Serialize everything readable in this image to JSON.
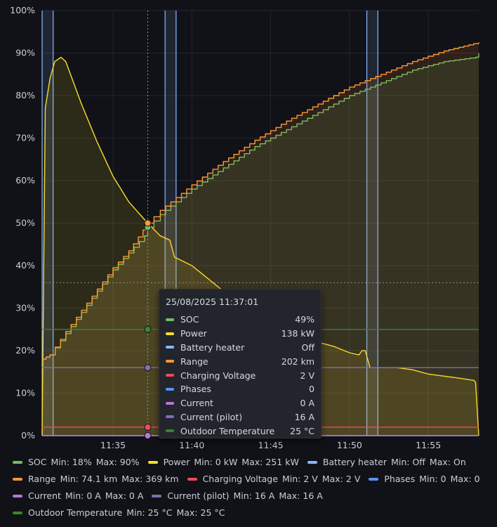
{
  "chart_data": {
    "type": "line",
    "y_ticks": [
      "0%",
      "10%",
      "20%",
      "30%",
      "40%",
      "50%",
      "60%",
      "70%",
      "80%",
      "90%",
      "100%"
    ],
    "x_ticks": [
      "11:35",
      "11:40",
      "11:45",
      "11:50",
      "11:55"
    ],
    "x_ticks_minutes": [
      35,
      40,
      45,
      50,
      55
    ],
    "x_range_minutes": [
      30.5,
      58.2
    ],
    "ylim": [
      0,
      100
    ],
    "grid": true,
    "legend_position": "bottom",
    "series": [
      {
        "name": "SOC",
        "color": "#73bf69",
        "points": [
          [
            30.5,
            18
          ],
          [
            31.0,
            19
          ],
          [
            32.0,
            24
          ],
          [
            33.0,
            29
          ],
          [
            34.0,
            34
          ],
          [
            35.0,
            39
          ],
          [
            36.0,
            43
          ],
          [
            37.0,
            47
          ],
          [
            37.2,
            49
          ],
          [
            38.0,
            52
          ],
          [
            40.0,
            58
          ],
          [
            42.0,
            63
          ],
          [
            44.0,
            68
          ],
          [
            46.0,
            72
          ],
          [
            48.0,
            76
          ],
          [
            50.0,
            80
          ],
          [
            52.0,
            83
          ],
          [
            54.0,
            86
          ],
          [
            56.0,
            88
          ],
          [
            58.0,
            89
          ],
          [
            58.2,
            90
          ]
        ]
      },
      {
        "name": "Power",
        "color": "#fade2a",
        "points": [
          [
            30.5,
            0
          ],
          [
            30.7,
            77
          ],
          [
            31.0,
            84
          ],
          [
            31.3,
            88
          ],
          [
            31.7,
            89
          ],
          [
            32.0,
            88
          ],
          [
            33.0,
            78
          ],
          [
            34.0,
            69
          ],
          [
            35.0,
            61
          ],
          [
            36.0,
            55
          ],
          [
            37.2,
            50
          ],
          [
            38.0,
            47
          ],
          [
            38.6,
            46
          ],
          [
            38.9,
            42
          ],
          [
            40.0,
            40
          ],
          [
            41.0,
            37
          ],
          [
            42.0,
            34
          ],
          [
            43.0,
            32
          ],
          [
            44.0,
            29
          ],
          [
            45.0,
            27
          ],
          [
            46.0,
            25
          ],
          [
            47.0,
            23
          ],
          [
            48.0,
            22
          ],
          [
            49.0,
            21
          ],
          [
            50.0,
            19.5
          ],
          [
            50.6,
            19
          ],
          [
            50.8,
            20
          ],
          [
            51.0,
            20
          ],
          [
            51.3,
            16
          ],
          [
            53.0,
            16
          ],
          [
            54.0,
            15.5
          ],
          [
            55.0,
            14.5
          ],
          [
            56.0,
            14
          ],
          [
            57.0,
            13.5
          ],
          [
            57.9,
            13
          ],
          [
            58.0,
            12.5
          ],
          [
            58.2,
            0
          ]
        ]
      },
      {
        "name": "Battery heater",
        "color": "#8ab8ff",
        "points": []
      },
      {
        "name": "Range",
        "color": "#ff9830",
        "points": [
          [
            30.5,
            18
          ],
          [
            31.0,
            19
          ],
          [
            32.0,
            24.5
          ],
          [
            33.0,
            29.5
          ],
          [
            34.0,
            34.5
          ],
          [
            35.0,
            39.5
          ],
          [
            36.0,
            43.5
          ],
          [
            37.2,
            50
          ],
          [
            38.0,
            53
          ],
          [
            40.0,
            59
          ],
          [
            42.0,
            64.5
          ],
          [
            44.0,
            69.5
          ],
          [
            46.0,
            74
          ],
          [
            48.0,
            78
          ],
          [
            50.0,
            82
          ],
          [
            52.0,
            85
          ],
          [
            54.0,
            88
          ],
          [
            56.0,
            90.5
          ],
          [
            58.2,
            92.5
          ]
        ]
      },
      {
        "name": "Charging Voltage",
        "color": "#f2495c",
        "points": [
          [
            30.5,
            2
          ],
          [
            58.2,
            2
          ]
        ]
      },
      {
        "name": "Phases",
        "color": "#5794f2",
        "points": [
          [
            30.5,
            0
          ],
          [
            58.2,
            0
          ]
        ]
      },
      {
        "name": "Current",
        "color": "#b877d9",
        "points": [
          [
            30.5,
            0
          ],
          [
            58.2,
            0
          ]
        ]
      },
      {
        "name": "Current (pilot)",
        "color": "#806eb7",
        "points": [
          [
            30.5,
            16
          ],
          [
            58.2,
            16
          ]
        ]
      },
      {
        "name": "Outdoor Temperature",
        "color": "#37872d",
        "points": [
          [
            30.5,
            25
          ],
          [
            58.2,
            25
          ]
        ]
      }
    ],
    "heater_bands_minutes": [
      [
        30.5,
        31.2
      ],
      [
        38.3,
        39.0
      ],
      [
        51.1,
        51.8
      ]
    ],
    "cursor_minute": 37.2,
    "crosshair_percent": 36
  },
  "tooltip": {
    "time": "25/08/2025 11:37:01",
    "rows": [
      {
        "label": "SOC",
        "value": "49%",
        "color": "#73bf69"
      },
      {
        "label": "Power",
        "value": "138 kW",
        "color": "#fade2a"
      },
      {
        "label": "Battery heater",
        "value": "Off",
        "color": "#8ab8ff"
      },
      {
        "label": "Range",
        "value": "202 km",
        "color": "#ff9830"
      },
      {
        "label": "Charging Voltage",
        "value": "2 V",
        "color": "#f2495c"
      },
      {
        "label": "Phases",
        "value": "0",
        "color": "#5794f2"
      },
      {
        "label": "Current",
        "value": "0 A",
        "color": "#b877d9"
      },
      {
        "label": "Current (pilot)",
        "value": "16 A",
        "color": "#806eb7"
      },
      {
        "label": "Outdoor Temperature",
        "value": "25 °C",
        "color": "#37872d"
      }
    ]
  },
  "legend": {
    "min_label": "Min:",
    "max_label": "Max:",
    "items": [
      {
        "name": "SOC",
        "min": "18%",
        "max": "90%",
        "color": "#73bf69"
      },
      {
        "name": "Power",
        "min": "0 kW",
        "max": "251 kW",
        "color": "#fade2a"
      },
      {
        "name": "Battery heater",
        "min": "Off",
        "max": "On",
        "color": "#8ab8ff"
      },
      {
        "name": "Range",
        "min": "74.1 km",
        "max": "369 km",
        "color": "#ff9830"
      },
      {
        "name": "Charging Voltage",
        "min": "2 V",
        "max": "2 V",
        "color": "#f2495c"
      },
      {
        "name": "Phases",
        "min": "0",
        "max": "0",
        "color": "#5794f2"
      },
      {
        "name": "Current",
        "min": "0 A",
        "max": "0 A",
        "color": "#b877d9"
      },
      {
        "name": "Current (pilot)",
        "min": "16 A",
        "max": "16 A",
        "color": "#806eb7"
      },
      {
        "name": "Outdoor Temperature",
        "min": "25 °C",
        "max": "25 °C",
        "color": "#37872d"
      }
    ]
  }
}
